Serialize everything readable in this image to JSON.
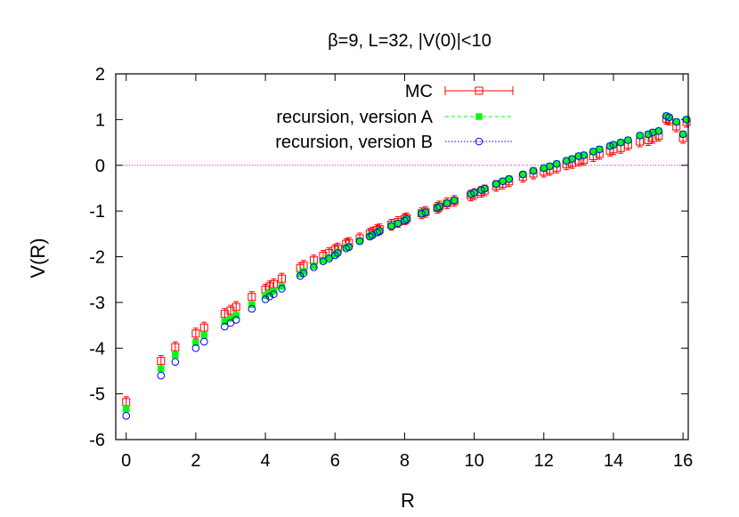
{
  "chart_data": {
    "type": "scatter",
    "title": "β=9, L=32, |V(0)|<10",
    "xlabel": "R",
    "ylabel": "V(R)",
    "xlim": [
      -0.3,
      16.15
    ],
    "ylim": [
      -6,
      2
    ],
    "xticks": [
      0,
      2,
      4,
      6,
      8,
      10,
      12,
      14,
      16
    ],
    "yticks": [
      2,
      1,
      0,
      -1,
      -2,
      -3,
      -4,
      -5,
      -6
    ],
    "grid": false,
    "legend_position": "top-right",
    "reference_line": {
      "y": 0,
      "color": "#ff00ff",
      "style": "dotted"
    },
    "series": [
      {
        "name": "MC",
        "marker": "open-square",
        "color": "#ff0000",
        "line_style": "solid",
        "error_bars": true,
        "points": [
          [
            0,
            -5.18
          ],
          [
            1,
            -4.28
          ],
          [
            1.41,
            -3.98
          ],
          [
            2,
            -3.68
          ],
          [
            2.24,
            -3.55
          ],
          [
            2.83,
            -3.25
          ],
          [
            3,
            -3.18
          ],
          [
            3.16,
            -3.1
          ],
          [
            3.61,
            -2.88
          ],
          [
            4,
            -2.72
          ],
          [
            4.12,
            -2.65
          ],
          [
            4.24,
            -2.6
          ],
          [
            4.47,
            -2.48
          ],
          [
            5,
            -2.25
          ],
          [
            5.1,
            -2.2
          ],
          [
            5.39,
            -2.08
          ],
          [
            5.66,
            -1.98
          ],
          [
            5.83,
            -1.92
          ],
          [
            6,
            -1.85
          ],
          [
            6.08,
            -1.82
          ],
          [
            6.32,
            -1.72
          ],
          [
            6.4,
            -1.7
          ],
          [
            6.71,
            -1.6
          ],
          [
            7,
            -1.5
          ],
          [
            7.07,
            -1.47
          ],
          [
            7.21,
            -1.42
          ],
          [
            7.28,
            -1.4
          ],
          [
            7.62,
            -1.3
          ],
          [
            7.81,
            -1.24
          ],
          [
            8,
            -1.18
          ],
          [
            8.06,
            -1.16
          ],
          [
            8.49,
            -1.05
          ],
          [
            8.6,
            -1.02
          ],
          [
            8.94,
            -0.93
          ],
          [
            9,
            -0.9
          ],
          [
            9.22,
            -0.83
          ],
          [
            9.43,
            -0.78
          ],
          [
            9.9,
            -0.66
          ],
          [
            10,
            -0.63
          ],
          [
            10.2,
            -0.58
          ],
          [
            10.3,
            -0.55
          ],
          [
            10.63,
            -0.45
          ],
          [
            10.82,
            -0.4
          ],
          [
            11,
            -0.35
          ],
          [
            11.4,
            -0.25
          ],
          [
            11.7,
            -0.18
          ],
          [
            12,
            -0.14
          ],
          [
            12.17,
            -0.1
          ],
          [
            12.37,
            -0.05
          ],
          [
            12.65,
            0.02
          ],
          [
            12.81,
            0.05
          ],
          [
            13,
            0.1
          ],
          [
            13.15,
            0.12
          ],
          [
            13.42,
            0.2
          ],
          [
            13.6,
            0.25
          ],
          [
            13.9,
            0.32
          ],
          [
            14,
            0.35
          ],
          [
            14.21,
            0.38
          ],
          [
            14.42,
            0.45
          ],
          [
            14.76,
            0.52
          ],
          [
            15,
            0.55
          ],
          [
            15.13,
            0.6
          ],
          [
            15.3,
            0.65
          ],
          [
            15.52,
            1.02
          ],
          [
            15.6,
            1.0
          ],
          [
            15.81,
            0.85
          ],
          [
            16,
            0.6
          ],
          [
            16.1,
            0.95
          ]
        ]
      },
      {
        "name": "recursion, version A",
        "marker": "filled-square",
        "color": "#00ff00",
        "line_style": "dashed",
        "error_bars": false,
        "points": [
          [
            0,
            -5.33
          ],
          [
            1,
            -4.45
          ],
          [
            1.41,
            -4.15
          ],
          [
            2,
            -3.88
          ],
          [
            2.24,
            -3.72
          ],
          [
            2.83,
            -3.42
          ],
          [
            3,
            -3.35
          ],
          [
            3.16,
            -3.28
          ],
          [
            3.61,
            -3.05
          ],
          [
            4,
            -2.85
          ],
          [
            4.12,
            -2.8
          ],
          [
            4.24,
            -2.75
          ],
          [
            4.47,
            -2.65
          ],
          [
            5,
            -2.38
          ],
          [
            5.1,
            -2.32
          ],
          [
            5.39,
            -2.2
          ],
          [
            5.66,
            -2.08
          ],
          [
            5.83,
            -2.02
          ],
          [
            6,
            -1.95
          ],
          [
            6.08,
            -1.9
          ],
          [
            6.32,
            -1.8
          ],
          [
            6.4,
            -1.77
          ],
          [
            6.71,
            -1.65
          ],
          [
            7,
            -1.55
          ],
          [
            7.07,
            -1.52
          ],
          [
            7.21,
            -1.46
          ],
          [
            7.28,
            -1.43
          ],
          [
            7.62,
            -1.32
          ],
          [
            7.81,
            -1.26
          ],
          [
            8,
            -1.2
          ],
          [
            8.06,
            -1.17
          ],
          [
            8.49,
            -1.05
          ],
          [
            8.6,
            -1.02
          ],
          [
            8.94,
            -0.92
          ],
          [
            9,
            -0.89
          ],
          [
            9.22,
            -0.82
          ],
          [
            9.43,
            -0.76
          ],
          [
            9.9,
            -0.63
          ],
          [
            10,
            -0.6
          ],
          [
            10.2,
            -0.54
          ],
          [
            10.3,
            -0.51
          ],
          [
            10.63,
            -0.41
          ],
          [
            10.82,
            -0.35
          ],
          [
            11,
            -0.3
          ],
          [
            11.4,
            -0.2
          ],
          [
            11.7,
            -0.12
          ],
          [
            12,
            -0.06
          ],
          [
            12.17,
            -0.02
          ],
          [
            12.37,
            0.03
          ],
          [
            12.65,
            0.1
          ],
          [
            12.81,
            0.14
          ],
          [
            13,
            0.2
          ],
          [
            13.15,
            0.22
          ],
          [
            13.42,
            0.3
          ],
          [
            13.6,
            0.35
          ],
          [
            13.9,
            0.42
          ],
          [
            14,
            0.45
          ],
          [
            14.21,
            0.5
          ],
          [
            14.42,
            0.55
          ],
          [
            14.76,
            0.65
          ],
          [
            15,
            0.68
          ],
          [
            15.13,
            0.72
          ],
          [
            15.3,
            0.75
          ],
          [
            15.52,
            1.08
          ],
          [
            15.6,
            1.05
          ],
          [
            15.81,
            0.95
          ],
          [
            16,
            0.68
          ],
          [
            16.1,
            1.0
          ]
        ]
      },
      {
        "name": "recursion, version B",
        "marker": "open-circle",
        "color": "#0000ff",
        "line_style": "dotted",
        "error_bars": false,
        "points": [
          [
            0,
            -5.48
          ],
          [
            1,
            -4.6
          ],
          [
            1.41,
            -4.3
          ],
          [
            2,
            -4.0
          ],
          [
            2.24,
            -3.86
          ],
          [
            2.83,
            -3.53
          ],
          [
            3,
            -3.45
          ],
          [
            3.16,
            -3.38
          ],
          [
            3.61,
            -3.14
          ],
          [
            4,
            -2.93
          ],
          [
            4.12,
            -2.87
          ],
          [
            4.24,
            -2.82
          ],
          [
            4.47,
            -2.7
          ],
          [
            5,
            -2.42
          ],
          [
            5.1,
            -2.36
          ],
          [
            5.39,
            -2.23
          ],
          [
            5.66,
            -2.1
          ],
          [
            5.83,
            -2.04
          ],
          [
            6,
            -1.97
          ],
          [
            6.08,
            -1.92
          ],
          [
            6.32,
            -1.82
          ],
          [
            6.4,
            -1.79
          ],
          [
            6.71,
            -1.66
          ],
          [
            7,
            -1.56
          ],
          [
            7.07,
            -1.53
          ],
          [
            7.21,
            -1.47
          ],
          [
            7.28,
            -1.44
          ],
          [
            7.62,
            -1.33
          ],
          [
            7.81,
            -1.27
          ],
          [
            8,
            -1.21
          ],
          [
            8.06,
            -1.18
          ],
          [
            8.49,
            -1.06
          ],
          [
            8.6,
            -1.03
          ],
          [
            8.94,
            -0.93
          ],
          [
            9,
            -0.9
          ],
          [
            9.22,
            -0.83
          ],
          [
            9.43,
            -0.77
          ],
          [
            9.9,
            -0.63
          ],
          [
            10,
            -0.6
          ],
          [
            10.2,
            -0.54
          ],
          [
            10.3,
            -0.51
          ],
          [
            10.63,
            -0.41
          ],
          [
            10.82,
            -0.35
          ],
          [
            11,
            -0.3
          ],
          [
            11.4,
            -0.2
          ],
          [
            11.7,
            -0.12
          ],
          [
            12,
            -0.06
          ],
          [
            12.17,
            -0.02
          ],
          [
            12.37,
            0.03
          ],
          [
            12.65,
            0.1
          ],
          [
            12.81,
            0.14
          ],
          [
            13,
            0.2
          ],
          [
            13.15,
            0.22
          ],
          [
            13.42,
            0.3
          ],
          [
            13.6,
            0.35
          ],
          [
            13.9,
            0.42
          ],
          [
            14,
            0.45
          ],
          [
            14.21,
            0.5
          ],
          [
            14.42,
            0.55
          ],
          [
            14.76,
            0.65
          ],
          [
            15,
            0.68
          ],
          [
            15.13,
            0.72
          ],
          [
            15.3,
            0.75
          ],
          [
            15.52,
            1.08
          ],
          [
            15.6,
            1.05
          ],
          [
            15.81,
            0.95
          ],
          [
            16,
            0.68
          ],
          [
            16.1,
            1.0
          ]
        ]
      }
    ]
  }
}
